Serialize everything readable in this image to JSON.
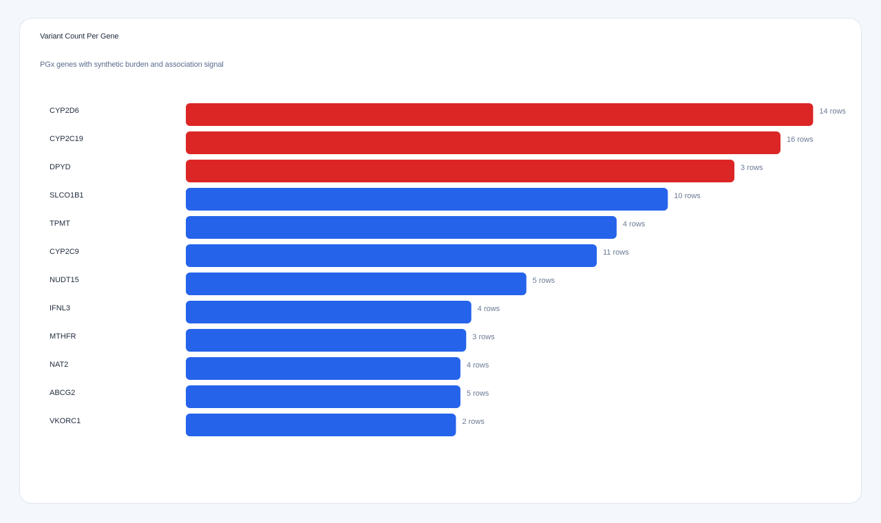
{
  "chart_data": {
    "type": "bar",
    "orientation": "horizontal",
    "title": "Variant Count Per Gene",
    "subtitle": "PGx genes with synthetic burden and association signal",
    "categories": [
      "CYP2D6",
      "CYP2C19",
      "DPYD",
      "SLCO1B1",
      "TPMT",
      "CYP2C9",
      "NUDT15",
      "IFNL3",
      "MTHFR",
      "NAT2",
      "ABCG2",
      "VKORC1"
    ],
    "values": [
      0.98,
      0.929,
      0.857,
      0.753,
      0.673,
      0.642,
      0.532,
      0.446,
      0.438,
      0.429,
      0.429,
      0.422
    ],
    "value_labels": [
      "14 rows",
      "16 rows",
      "3 rows",
      "10 rows",
      "4 rows",
      "11 rows",
      "5 rows",
      "4 rows",
      "3 rows",
      "4 rows",
      "5 rows",
      "2 rows"
    ],
    "highlight": [
      true,
      true,
      true,
      false,
      false,
      false,
      false,
      false,
      false,
      false,
      false,
      false
    ],
    "xlim": [
      0,
      1
    ],
    "grid": false,
    "legend": "none",
    "colors": {
      "highlight": "#dc2626",
      "default": "#2563eb"
    }
  }
}
